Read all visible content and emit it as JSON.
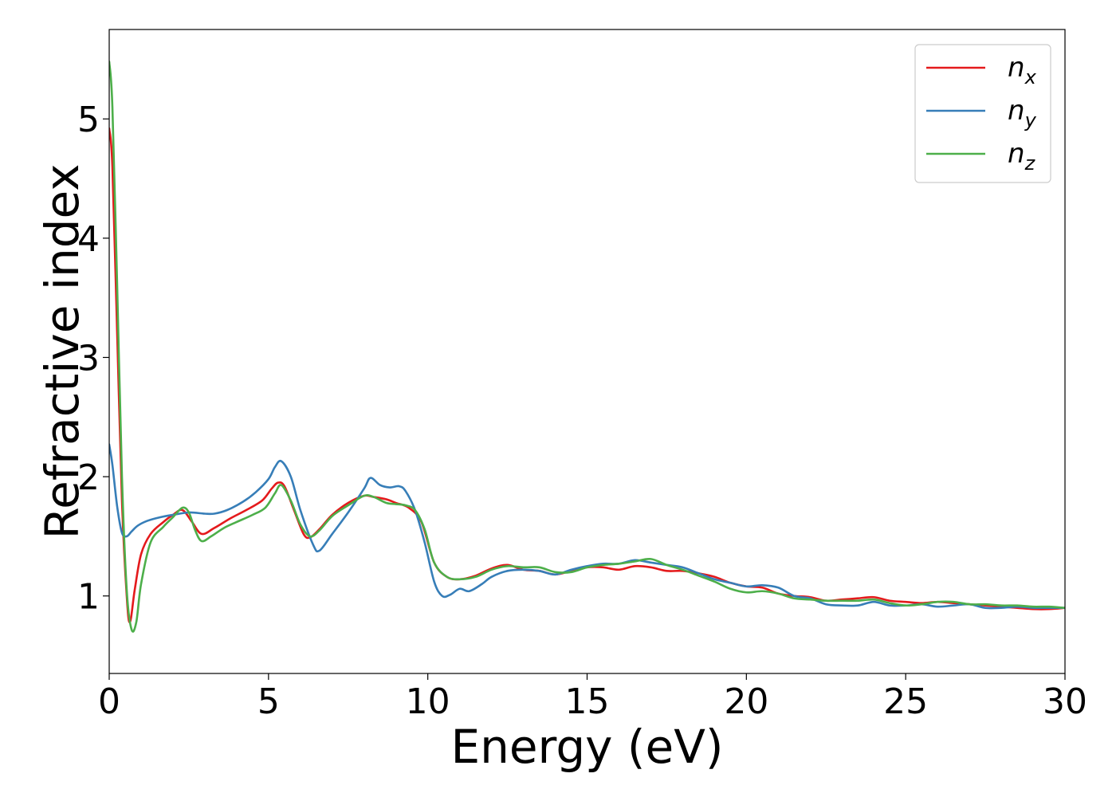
{
  "chart_data": {
    "type": "line",
    "xlabel": "Energy (eV)",
    "ylabel": "Refractive index",
    "xlim": [
      0,
      30
    ],
    "ylim": [
      0.35,
      5.75
    ],
    "xticks": [
      0,
      5,
      10,
      15,
      20,
      25,
      30
    ],
    "yticks": [
      1,
      2,
      3,
      4,
      5
    ],
    "xtick_labels": [
      "0",
      "5",
      "10",
      "15",
      "20",
      "25",
      "30"
    ],
    "ytick_labels": [
      "1",
      "2",
      "3",
      "4",
      "5"
    ],
    "grid": false,
    "legend_position": "top-right",
    "series": [
      {
        "name": "nx",
        "base": "n",
        "sub": "x",
        "color": "#e41a1c",
        "x": [
          0,
          0.1,
          0.25,
          0.4,
          0.55,
          0.65,
          0.8,
          1.0,
          1.3,
          1.7,
          2.0,
          2.3,
          2.6,
          2.9,
          3.3,
          3.8,
          4.3,
          4.8,
          5.1,
          5.3,
          5.5,
          5.8,
          6.1,
          6.3,
          6.6,
          7.0,
          7.5,
          8.0,
          8.3,
          8.7,
          9.0,
          9.4,
          9.8,
          10.2,
          10.6,
          11.0,
          11.5,
          12.0,
          12.5,
          13.0,
          13.5,
          14.0,
          14.5,
          15.0,
          15.5,
          16.0,
          16.5,
          17.0,
          17.5,
          18.0,
          18.5,
          19.0,
          19.5,
          20.0,
          20.5,
          21.0,
          21.5,
          22.0,
          22.5,
          23.0,
          23.5,
          24.0,
          24.5,
          25.0,
          25.5,
          26.0,
          26.5,
          27.0,
          27.5,
          28.0,
          28.5,
          29.0,
          29.5,
          30.0
        ],
        "y": [
          4.92,
          4.6,
          3.2,
          1.8,
          1.0,
          0.78,
          1.05,
          1.35,
          1.52,
          1.62,
          1.68,
          1.72,
          1.62,
          1.52,
          1.57,
          1.65,
          1.72,
          1.8,
          1.9,
          1.95,
          1.92,
          1.72,
          1.52,
          1.49,
          1.56,
          1.68,
          1.78,
          1.84,
          1.83,
          1.81,
          1.78,
          1.74,
          1.62,
          1.28,
          1.16,
          1.14,
          1.17,
          1.23,
          1.26,
          1.22,
          1.21,
          1.18,
          1.21,
          1.24,
          1.24,
          1.22,
          1.25,
          1.24,
          1.21,
          1.21,
          1.19,
          1.16,
          1.11,
          1.08,
          1.07,
          1.02,
          1.0,
          0.99,
          0.96,
          0.97,
          0.98,
          0.99,
          0.96,
          0.95,
          0.94,
          0.95,
          0.94,
          0.93,
          0.92,
          0.91,
          0.9,
          0.89,
          0.89,
          0.9
        ]
      },
      {
        "name": "ny",
        "base": "n",
        "sub": "y",
        "color": "#377eb8",
        "x": [
          0,
          0.1,
          0.25,
          0.4,
          0.55,
          0.7,
          0.9,
          1.2,
          1.6,
          2.0,
          2.5,
          3.0,
          3.3,
          3.7,
          4.2,
          4.6,
          5.0,
          5.2,
          5.4,
          5.7,
          6.0,
          6.4,
          6.6,
          7.0,
          7.5,
          8.0,
          8.2,
          8.5,
          8.8,
          9.1,
          9.3,
          9.6,
          9.9,
          10.2,
          10.45,
          10.7,
          11.0,
          11.3,
          11.7,
          12.0,
          12.5,
          13.0,
          13.5,
          14.0,
          14.5,
          15.0,
          15.5,
          16.0,
          16.5,
          17.0,
          17.5,
          18.0,
          18.5,
          19.0,
          19.5,
          20.0,
          20.5,
          21.0,
          21.5,
          22.0,
          22.5,
          23.0,
          23.5,
          24.0,
          24.5,
          25.0,
          25.5,
          26.0,
          26.5,
          27.0,
          27.5,
          28.0,
          28.5,
          29.0,
          29.5,
          30.0
        ],
        "y": [
          2.27,
          2.1,
          1.75,
          1.53,
          1.5,
          1.54,
          1.59,
          1.63,
          1.66,
          1.68,
          1.7,
          1.69,
          1.69,
          1.72,
          1.79,
          1.87,
          1.98,
          2.08,
          2.13,
          2.0,
          1.72,
          1.43,
          1.38,
          1.52,
          1.7,
          1.9,
          1.99,
          1.93,
          1.91,
          1.92,
          1.88,
          1.72,
          1.45,
          1.12,
          1.0,
          1.01,
          1.06,
          1.04,
          1.1,
          1.16,
          1.21,
          1.22,
          1.21,
          1.18,
          1.22,
          1.25,
          1.27,
          1.27,
          1.3,
          1.28,
          1.26,
          1.24,
          1.19,
          1.14,
          1.11,
          1.08,
          1.09,
          1.07,
          1.0,
          0.98,
          0.93,
          0.92,
          0.92,
          0.95,
          0.92,
          0.92,
          0.93,
          0.91,
          0.92,
          0.93,
          0.9,
          0.9,
          0.91,
          0.9,
          0.9,
          0.9
        ]
      },
      {
        "name": "nz",
        "base": "n",
        "sub": "z",
        "color": "#4daf4a",
        "x": [
          0,
          0.1,
          0.25,
          0.4,
          0.55,
          0.7,
          0.85,
          1.0,
          1.3,
          1.7,
          2.0,
          2.3,
          2.5,
          2.7,
          2.9,
          3.2,
          3.6,
          4.0,
          4.5,
          4.9,
          5.2,
          5.4,
          5.7,
          6.0,
          6.3,
          6.6,
          7.0,
          7.5,
          8.0,
          8.3,
          8.7,
          9.0,
          9.3,
          9.6,
          9.9,
          10.2,
          10.6,
          11.0,
          11.5,
          12.0,
          12.5,
          13.0,
          13.5,
          14.0,
          14.5,
          15.0,
          15.5,
          16.0,
          16.5,
          17.0,
          17.5,
          18.0,
          18.5,
          19.0,
          19.5,
          20.0,
          20.5,
          21.0,
          21.5,
          22.0,
          22.5,
          23.0,
          23.5,
          24.0,
          24.5,
          25.0,
          25.5,
          26.0,
          26.5,
          27.0,
          27.5,
          28.0,
          28.5,
          29.0,
          29.5,
          30.0
        ],
        "y": [
          5.48,
          5.1,
          3.6,
          2.0,
          1.05,
          0.72,
          0.78,
          1.1,
          1.45,
          1.58,
          1.66,
          1.74,
          1.7,
          1.55,
          1.46,
          1.5,
          1.57,
          1.62,
          1.68,
          1.74,
          1.86,
          1.93,
          1.8,
          1.6,
          1.5,
          1.55,
          1.67,
          1.76,
          1.84,
          1.83,
          1.78,
          1.77,
          1.76,
          1.72,
          1.56,
          1.28,
          1.16,
          1.14,
          1.16,
          1.22,
          1.25,
          1.24,
          1.24,
          1.2,
          1.2,
          1.24,
          1.26,
          1.27,
          1.29,
          1.31,
          1.26,
          1.22,
          1.17,
          1.12,
          1.06,
          1.03,
          1.04,
          1.02,
          0.98,
          0.97,
          0.96,
          0.96,
          0.96,
          0.97,
          0.94,
          0.92,
          0.93,
          0.95,
          0.95,
          0.93,
          0.93,
          0.92,
          0.92,
          0.91,
          0.91,
          0.9
        ]
      }
    ]
  }
}
